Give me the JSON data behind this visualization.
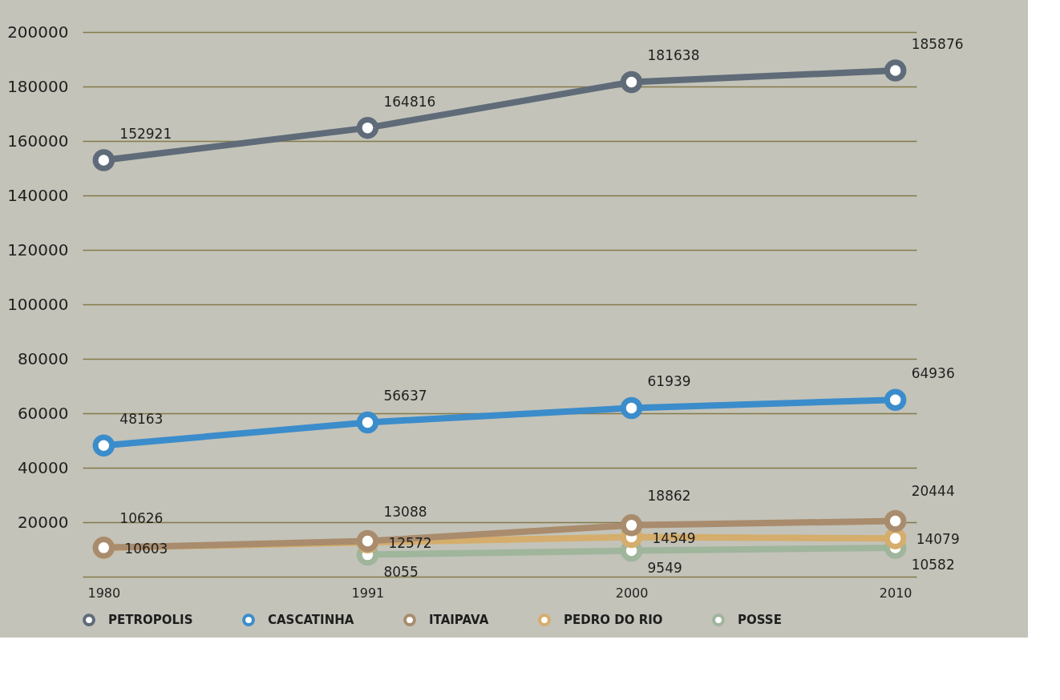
{
  "chart_data": {
    "type": "line",
    "categories": [
      "1980",
      "1991",
      "2000",
      "2010"
    ],
    "series": [
      {
        "name": "PETROPOLIS",
        "color": "#5f6b78",
        "values": [
          152921,
          164816,
          181638,
          185876
        ]
      },
      {
        "name": "CASCATINHA",
        "color": "#3b8ccb",
        "values": [
          48163,
          56637,
          61939,
          64936
        ]
      },
      {
        "name": "ITAIPAVA",
        "color": "#a98c6d",
        "values": [
          10626,
          13088,
          18862,
          20444
        ]
      },
      {
        "name": "PEDRO DO RIO",
        "color": "#d5ad6c",
        "values": [
          10603,
          12572,
          14549,
          14079
        ]
      },
      {
        "name": "POSSE",
        "color": "#9fb59c",
        "values": [
          null,
          8055,
          9549,
          10582
        ]
      }
    ],
    "ylim": [
      0,
      200000
    ],
    "yticks": [
      {
        "value": 0,
        "label": null
      },
      20000,
      40000,
      60000,
      80000,
      100000,
      120000,
      140000,
      160000,
      180000,
      200000
    ],
    "grid": "y",
    "legend": "bottom",
    "marker": "circle",
    "line_style": "solid",
    "data_labels": true
  }
}
